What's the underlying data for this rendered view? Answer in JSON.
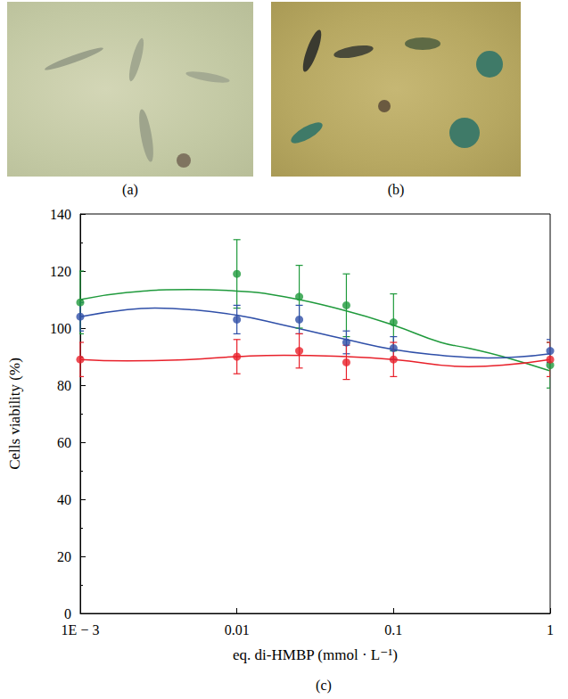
{
  "panel_labels": [
    "(a)",
    "(b)",
    "(c)"
  ],
  "chart_data": {
    "type": "scatter",
    "x_label": "eq. di-HMBP (mmol · L⁻¹)",
    "y_label": "Cells viability (%)",
    "log": "x",
    "grid": false,
    "xlim": [
      0.001,
      1
    ],
    "xticks": [
      {
        "value": 0.001,
        "label": "1E − 3"
      },
      0.01,
      0.1,
      1
    ],
    "ylim": [
      0,
      140
    ],
    "yticks": [
      0,
      20,
      40,
      60,
      80,
      100,
      120,
      140
    ],
    "x": [
      0.001,
      0.01,
      0.025,
      0.05,
      0.1,
      1
    ],
    "series": [
      {
        "color": "#1f9a3c",
        "marker": "circle",
        "values": [
          109,
          119,
          111,
          108,
          102,
          87
        ],
        "errors": [
          11,
          12,
          11,
          11,
          10,
          8
        ],
        "fit": {
          "x": [
            0.001,
            0.002,
            0.005,
            0.01,
            0.02,
            0.05,
            0.1,
            0.2,
            0.3,
            0.5,
            1
          ],
          "values": [
            110,
            112.5,
            113.5,
            113,
            111,
            106,
            101,
            95,
            93,
            90,
            85
          ]
        }
      },
      {
        "color": "#2f4fa8",
        "marker": "circle",
        "values": [
          104,
          103,
          103,
          95,
          93,
          92
        ],
        "errors": [
          5,
          5,
          5,
          4,
          4,
          4
        ],
        "fit": {
          "x": [
            0.001,
            0.002,
            0.003,
            0.005,
            0.01,
            0.02,
            0.05,
            0.1,
            0.2,
            0.4,
            1
          ],
          "values": [
            104,
            106.5,
            107,
            106.5,
            104.5,
            101,
            96,
            92.5,
            90.5,
            89.5,
            91
          ]
        }
      },
      {
        "color": "#e8202a",
        "marker": "circle",
        "values": [
          89,
          90,
          92,
          88,
          89,
          89
        ],
        "errors": [
          6,
          6,
          6,
          6,
          6,
          6
        ],
        "fit": {
          "x": [
            0.001,
            0.002,
            0.005,
            0.01,
            0.02,
            0.05,
            0.1,
            0.3,
            0.5,
            1
          ],
          "values": [
            89,
            88.5,
            89,
            90,
            90.5,
            90,
            89,
            86.5,
            87,
            89
          ]
        }
      }
    ]
  }
}
